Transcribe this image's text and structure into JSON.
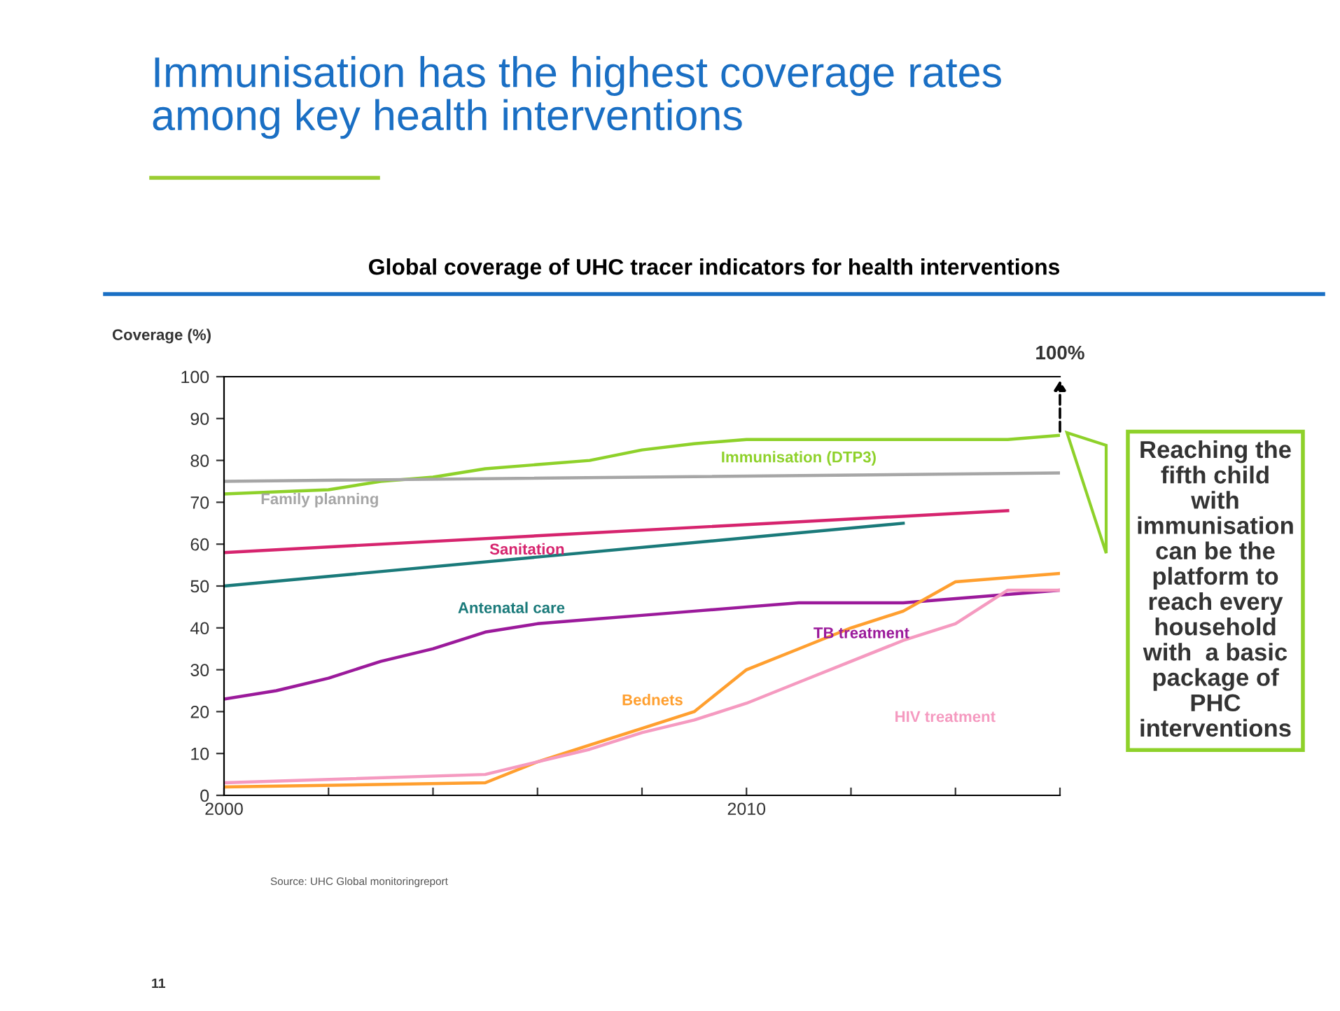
{
  "chart_data": {
    "type": "line",
    "title": "Immunisation has the highest coverage rates\namong key health interventions",
    "subtitle": "Global coverage of UHC tracer indicators for health interventions",
    "ylabel": "Coverage (%)",
    "xlim": [
      2000,
      2016
    ],
    "ylim": [
      0,
      100
    ],
    "xticks": [
      2000,
      {
        "value": 2002,
        "label": null
      },
      {
        "value": 2004,
        "label": null
      },
      {
        "value": 2006,
        "label": null
      },
      {
        "value": 2008,
        "label": null
      },
      2010,
      {
        "value": 2012,
        "label": null
      },
      {
        "value": 2014,
        "label": null
      },
      {
        "value": 2016,
        "label": null
      }
    ],
    "yticks": [
      0,
      10,
      20,
      30,
      40,
      50,
      60,
      70,
      80,
      90,
      100
    ],
    "grid": false,
    "legend": false,
    "marker": "none",
    "line_style": "solid",
    "series": [
      {
        "name": "Immunisation (DTP3)",
        "color": "#8ed12a",
        "x": [
          2000,
          2001,
          2002,
          2003,
          2004,
          2005,
          2006,
          2007,
          2008,
          2009,
          2010,
          2011,
          2012,
          2013,
          2014,
          2015,
          2016
        ],
        "values": [
          72,
          72.5,
          73,
          75,
          76,
          78,
          79,
          80,
          82.5,
          84,
          85,
          85,
          85,
          85,
          85,
          85,
          86
        ]
      },
      {
        "name": "Family planning",
        "color": "#a6a6a6",
        "x": [
          2000,
          2016
        ],
        "values": [
          75,
          77
        ]
      },
      {
        "name": "Sanitation",
        "color": "#d6246e",
        "x": [
          2000,
          2015
        ],
        "values": [
          58,
          68
        ]
      },
      {
        "name": "Antenatal care",
        "color": "#1a7a7a",
        "x": [
          2000,
          2013
        ],
        "values": [
          50,
          65
        ]
      },
      {
        "name": "TB treatment",
        "color": "#9b1a9b",
        "x": [
          2000,
          2001,
          2002,
          2003,
          2004,
          2005,
          2006,
          2007,
          2008,
          2009,
          2010,
          2011,
          2012,
          2013,
          2014,
          2015,
          2016
        ],
        "values": [
          23,
          25,
          28,
          32,
          35,
          39,
          41,
          42,
          43,
          44,
          45,
          46,
          46,
          46,
          47,
          48,
          49
        ]
      },
      {
        "name": "Bednets",
        "color": "#ff9f2f",
        "x": [
          2000,
          2005,
          2006,
          2007,
          2008,
          2009,
          2010,
          2011,
          2012,
          2013,
          2014,
          2015,
          2016
        ],
        "values": [
          2,
          3,
          8,
          12,
          16,
          20,
          30,
          35,
          40,
          44,
          51,
          52,
          53
        ]
      },
      {
        "name": "HIV treatment",
        "color": "#f59ac0",
        "x": [
          2000,
          2005,
          2006,
          2007,
          2008,
          2009,
          2010,
          2011,
          2012,
          2013,
          2014,
          2015,
          2016
        ],
        "values": [
          3,
          5,
          8,
          11,
          15,
          18,
          22,
          27,
          32,
          37,
          41,
          49,
          49
        ]
      }
    ],
    "annotations": [
      "100%",
      "Reaching the\nfifth child\nwith\nimmunisation\ncan be the\nplatform to\nreach every\nhousehold\nwith  a basic\npackage of\nPHC\ninterventions",
      "Source: UHC Global monitoringreport",
      "11"
    ]
  }
}
